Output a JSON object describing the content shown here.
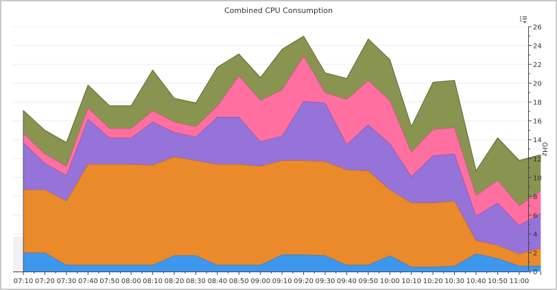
{
  "chart_data": {
    "type": "area",
    "stacked": true,
    "title": "Combined CPU Consumption",
    "ylabel": "GHz",
    "xlabel": "",
    "y_axis_side": "right",
    "ylim": [
      0,
      26
    ],
    "y_ticks": [
      "0",
      "2",
      "4",
      "6",
      "8",
      "10",
      "12",
      "14",
      "16",
      "18",
      "20",
      "22",
      "24",
      "26"
    ],
    "x_tick_labels": [
      "07:10",
      "07:20",
      "07:30",
      "07:40",
      "07:50",
      "08:00",
      "08:10",
      "08:20",
      "08:30",
      "08:40",
      "08:50",
      "09:00",
      "09:10",
      "09:20",
      "09:30",
      "09:40",
      "09:50",
      "10:00",
      "10:10",
      "10:20",
      "10:30",
      "10:40",
      "10:50",
      "11:00"
    ],
    "grid": true,
    "legend": "none",
    "series": [
      {
        "color": "#3d97ef",
        "stroke": "#1f6fc0",
        "values": [
          2.0,
          2.0,
          0.7,
          0.7,
          0.7,
          0.7,
          0.7,
          1.7,
          1.7,
          0.7,
          0.7,
          0.7,
          1.8,
          1.8,
          1.7,
          0.7,
          0.7,
          1.7,
          0.5,
          0.5,
          0.6,
          1.9,
          1.4,
          0.6,
          0.6
        ]
      },
      {
        "color": "#ea8a2a",
        "stroke": "#b8601a",
        "values": [
          6.7,
          6.7,
          6.8,
          10.7,
          10.7,
          10.7,
          10.6,
          10.5,
          10.1,
          10.7,
          10.7,
          10.5,
          10.0,
          10.0,
          10.0,
          10.1,
          10.0,
          7.0,
          6.8,
          6.8,
          6.9,
          1.4,
          1.4,
          1.3,
          1.9
        ]
      },
      {
        "color": "#9673d8",
        "stroke": "#6a4cb0",
        "values": [
          5.0,
          2.8,
          2.7,
          4.8,
          2.8,
          2.8,
          4.6,
          2.6,
          2.5,
          5.0,
          5.0,
          2.6,
          2.6,
          6.3,
          6.2,
          2.7,
          4.9,
          4.9,
          2.8,
          5.0,
          5.0,
          2.6,
          4.5,
          3.0,
          3.7
        ]
      },
      {
        "color": "#ff6fa0",
        "stroke": "#c8447a",
        "values": [
          1.0,
          1.0,
          1.0,
          1.2,
          1.0,
          1.0,
          1.2,
          1.1,
          1.1,
          1.2,
          4.4,
          4.4,
          4.9,
          4.8,
          1.1,
          4.8,
          4.7,
          4.6,
          2.6,
          2.8,
          2.8,
          2.2,
          2.4,
          2.1,
          2.4
        ]
      },
      {
        "color": "#899450",
        "stroke": "#5d6830",
        "values": [
          2.4,
          2.5,
          2.5,
          2.4,
          2.4,
          2.4,
          4.3,
          2.5,
          2.5,
          4.1,
          2.3,
          2.4,
          4.3,
          2.1,
          2.1,
          2.2,
          4.4,
          4.3,
          2.7,
          5.0,
          5.0,
          2.6,
          4.5,
          4.8,
          3.8
        ]
      }
    ]
  },
  "toolbar": {
    "menu_icon": "chart-menu-icon"
  }
}
